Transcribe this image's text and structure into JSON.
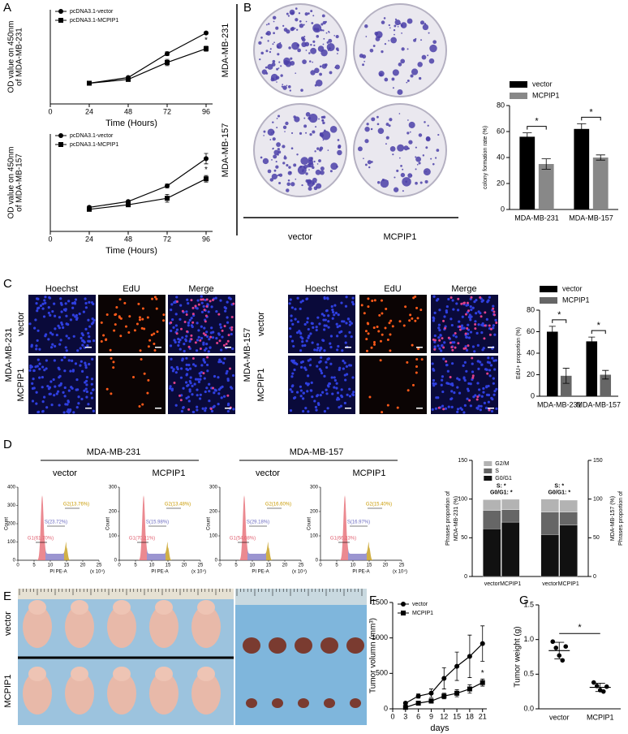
{
  "panel_labels": [
    "A",
    "B",
    "C",
    "D",
    "E",
    "F",
    "G"
  ],
  "colony": {
    "cell_lines": [
      "MDA-MB-231",
      "MDA-MB-157"
    ],
    "groups": [
      "vector",
      "MCPIP1"
    ]
  },
  "edu": {
    "cell_lines": [
      "MDA-MB-231",
      "MDA-MB-157"
    ],
    "stains": [
      "Hoechst",
      "EdU",
      "Merge"
    ],
    "groups": [
      "vector",
      "MCPIP1"
    ]
  },
  "flow": {
    "cell_lines": [
      "MDA-MB-231",
      "MDA-MB-157"
    ],
    "groups": [
      "vector",
      "MCPIP1",
      "vector",
      "MCPIP1"
    ],
    "histograms": [
      {
        "yticks": [
          0,
          100,
          200,
          300,
          400
        ],
        "xticks": [
          0,
          5,
          10,
          15,
          20,
          25
        ],
        "ylabel": "Count",
        "xlabel": "PI PE-A",
        "xunit": "(x 10⁴)",
        "gates": [
          "G1(61.70%)",
          "S(23.72%)",
          "G2(13.76%)"
        ]
      },
      {
        "yticks": [
          0,
          100,
          200,
          300
        ],
        "xticks": [
          0,
          5,
          10,
          15,
          20,
          25
        ],
        "ylabel": "Count",
        "xlabel": "PI PE-A",
        "xunit": "(x 10⁴)",
        "gates": [
          "G1(70.21%)",
          "S(15.98%)",
          "G2(13.48%)"
        ]
      },
      {
        "yticks": [
          0,
          100,
          200,
          300
        ],
        "xticks": [
          0,
          5,
          10,
          15,
          20,
          25
        ],
        "ylabel": "Count",
        "xlabel": "PI PE-A",
        "xunit": "(x 10⁴)",
        "gates": [
          "G1(54.08%)",
          "S(29.18%)",
          "G2(16.60%)"
        ]
      },
      {
        "yticks": [
          0,
          100,
          200,
          300
        ],
        "xticks": [
          0,
          5,
          10,
          15,
          20,
          25
        ],
        "ylabel": "Count",
        "xlabel": "PI PE-A",
        "xunit": "(x 10⁴)",
        "gates": [
          "G1(66.23%)",
          "S(16.97%)",
          "G2(15.40%)"
        ]
      }
    ]
  },
  "xenograft": {
    "groups": [
      "vector",
      "MCPIP1"
    ]
  },
  "chart_data": [
    {
      "type": "line",
      "ylabel": [
        "OD value on 450nm",
        "of MDA-MB-231"
      ],
      "xlabel": "Time (Hours)",
      "x": [
        24,
        48,
        72,
        96
      ],
      "xlim": [
        0,
        100
      ],
      "xticks": [
        0,
        24,
        48,
        72,
        96
      ],
      "ylim": [
        0,
        1.5
      ],
      "legend": "upper left",
      "series": [
        {
          "name": "pcDNA3.1-vector",
          "color": "#000000",
          "marker": "circle",
          "values": [
            0.33,
            0.42,
            0.8,
            1.13
          ],
          "errors": [
            0.02,
            0.02,
            0.03,
            0.02
          ]
        },
        {
          "name": "pcDNA3.1-MCPIP1",
          "color": "#000000",
          "marker": "square",
          "values": [
            0.33,
            0.39,
            0.66,
            0.88
          ],
          "errors": [
            0.02,
            0.02,
            0.05,
            0.04
          ]
        }
      ],
      "annotations": [
        "*"
      ]
    },
    {
      "type": "line",
      "ylabel": [
        "OD value on 450nm",
        "of MDA-MB-157"
      ],
      "xlabel": "Time (Hours)",
      "x": [
        24,
        48,
        72,
        96
      ],
      "xlim": [
        0,
        100
      ],
      "xticks": [
        0,
        24,
        48,
        72,
        96
      ],
      "ylim": [
        0,
        1.5
      ],
      "legend": "upper left",
      "series": [
        {
          "name": "pcDNA3.1-vector",
          "color": "#000000",
          "marker": "circle",
          "values": [
            0.37,
            0.46,
            0.7,
            1.12
          ],
          "errors": [
            0.02,
            0.02,
            0.03,
            0.08
          ]
        },
        {
          "name": "pcDNA3.1-MCPIP1",
          "color": "#000000",
          "marker": "square",
          "values": [
            0.34,
            0.41,
            0.51,
            0.81
          ],
          "errors": [
            0.02,
            0.02,
            0.06,
            0.05
          ]
        }
      ],
      "annotations": [
        "*"
      ]
    },
    {
      "type": "bar",
      "ylabel": "colony formation rate (%)",
      "categories": [
        "MDA-MB-231",
        "MDA-MB-157"
      ],
      "ylim": [
        0,
        80
      ],
      "yticks": [
        0,
        20,
        40,
        60,
        80
      ],
      "legend": "top",
      "series": [
        {
          "name": "vector",
          "color": "#000000",
          "values": [
            56,
            62
          ],
          "errors": [
            3,
            4
          ]
        },
        {
          "name": "MCPIP1",
          "color": "#888888",
          "values": [
            35,
            40
          ],
          "errors": [
            4,
            2
          ]
        }
      ],
      "annotations": [
        "*",
        "*"
      ]
    },
    {
      "type": "bar",
      "ylabel": "EdU+ proportion (%)",
      "categories": [
        "MDA-MB-231",
        "MDA-MB-157"
      ],
      "ylim": [
        0,
        80
      ],
      "yticks": [
        0,
        20,
        40,
        60,
        80
      ],
      "legend": "top",
      "series": [
        {
          "name": "vector",
          "color": "#000000",
          "values": [
            60,
            51
          ],
          "errors": [
            5,
            4
          ]
        },
        {
          "name": "MCPIP1",
          "color": "#666666",
          "values": [
            19,
            20
          ],
          "errors": [
            7,
            4
          ]
        }
      ],
      "annotations": [
        "*",
        "*"
      ]
    },
    {
      "type": "stacked_bar",
      "ylabel": [
        "Phrases proportion of",
        "MDA-MB-231 (%)"
      ],
      "y2label": [
        "Phrases proportion of",
        "MDA-MB-157 (%)"
      ],
      "categories": [
        "vector",
        "MCPIP1",
        "vector",
        "MCPIP1"
      ],
      "ylim": [
        0,
        150
      ],
      "yticks": [
        0,
        50,
        100,
        150
      ],
      "y2lim": [
        0,
        150
      ],
      "y2ticks": [
        0,
        50,
        100,
        150
      ],
      "legend": "upper left",
      "series": [
        {
          "name": "G0/G1",
          "color": "#111111",
          "values": [
            61.7,
            70.21,
            54.08,
            66.23
          ]
        },
        {
          "name": "S",
          "color": "#666666",
          "values": [
            23.72,
            15.98,
            29.18,
            16.97
          ]
        },
        {
          "name": "G2/M",
          "color": "#b3b3b3",
          "values": [
            13.76,
            13.48,
            16.6,
            15.4
          ]
        }
      ],
      "annotations": [
        [
          "S: *",
          "G0/G1: *"
        ],
        [
          "S: *",
          "G0/G1: *"
        ]
      ]
    },
    {
      "type": "line",
      "ylabel": "Tumor volumn (mm³)",
      "xlabel": "days",
      "x": [
        3,
        6,
        9,
        12,
        15,
        18,
        21
      ],
      "xlim": [
        0,
        22
      ],
      "xticks": [
        0,
        3,
        6,
        9,
        12,
        15,
        18,
        21
      ],
      "ylim": [
        0,
        1500
      ],
      "yticks": [
        0,
        500,
        1000,
        1500
      ],
      "legend": "upper left",
      "series": [
        {
          "name": "vector",
          "color": "#000000",
          "marker": "circle",
          "values": [
            80,
            180,
            220,
            430,
            600,
            740,
            920
          ],
          "errors": [
            15,
            30,
            60,
            150,
            200,
            300,
            250
          ]
        },
        {
          "name": "MCPIP1",
          "color": "#000000",
          "marker": "square",
          "values": [
            20,
            80,
            110,
            180,
            220,
            280,
            370
          ],
          "errors": [
            10,
            20,
            30,
            40,
            50,
            60,
            50
          ]
        }
      ],
      "annotations": [
        "*"
      ]
    },
    {
      "type": "dot",
      "ylabel": "Tumor weight (g)",
      "categories": [
        "vector",
        "MCPIP1"
      ],
      "ylim": [
        0,
        1.5
      ],
      "yticks": [
        {
          "value": 0,
          "label": "0.0"
        },
        0.5,
        {
          "value": 1,
          "label": "1.0"
        },
        1.5
      ],
      "color": "#000000",
      "values": [
        [
          0.97,
          0.88,
          0.77,
          0.7,
          0.9
        ],
        [
          0.38,
          0.33,
          0.27,
          0.25,
          0.32
        ]
      ],
      "means": [
        0.84,
        0.31
      ],
      "sd": [
        0.12,
        0.06
      ],
      "annotations": [
        "*"
      ]
    }
  ]
}
